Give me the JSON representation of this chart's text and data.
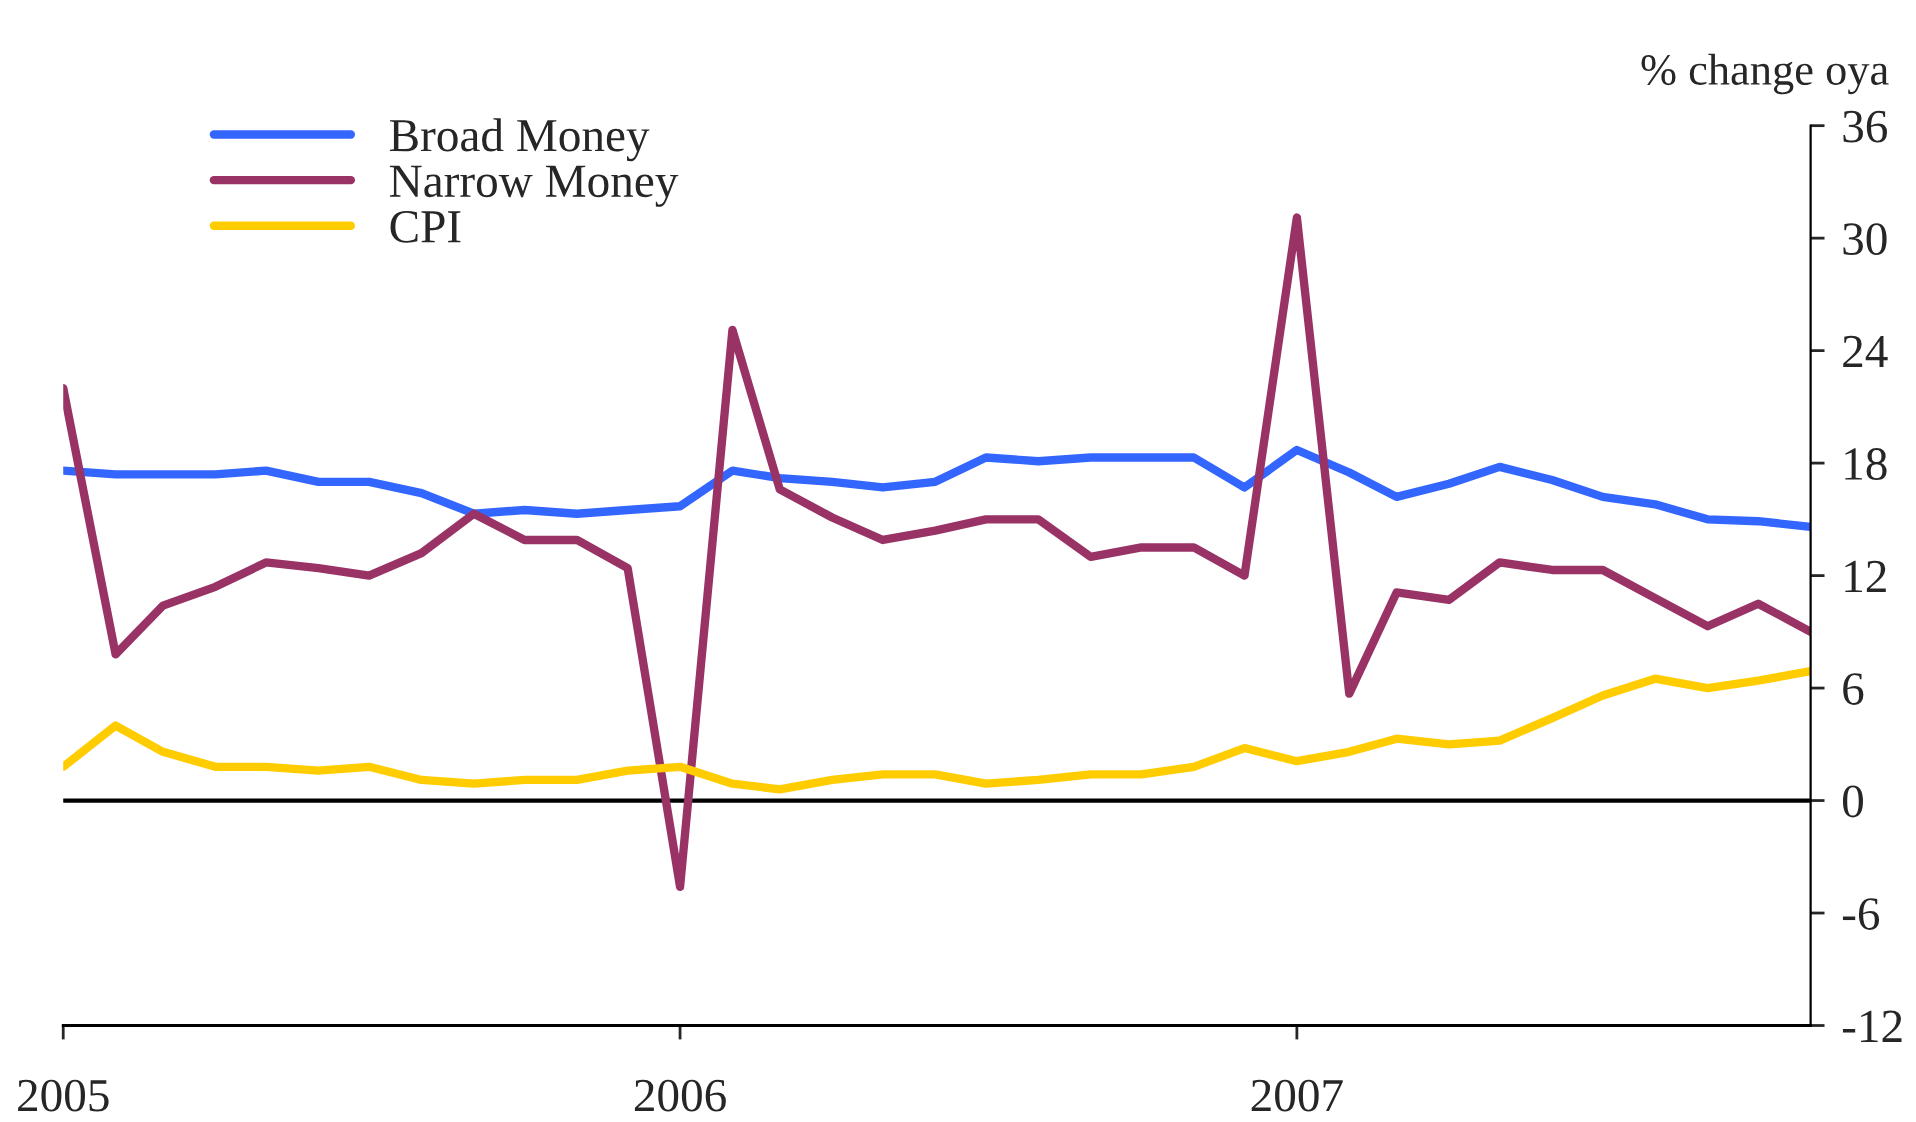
{
  "chart_data": {
    "type": "line",
    "ylabel": "% change oya",
    "x": [
      "2005-01",
      "2005-02",
      "2005-03",
      "2005-04",
      "2005-05",
      "2005-06",
      "2005-07",
      "2005-08",
      "2005-09",
      "2005-10",
      "2005-11",
      "2005-12",
      "2006-01",
      "2006-02",
      "2006-03",
      "2006-04",
      "2006-05",
      "2006-06",
      "2006-07",
      "2006-08",
      "2006-09",
      "2006-10",
      "2006-11",
      "2006-12",
      "2007-01",
      "2007-02",
      "2007-03",
      "2007-04",
      "2007-05",
      "2007-06",
      "2007-07",
      "2007-08",
      "2007-09",
      "2007-10",
      "2007-11"
    ],
    "series": [
      {
        "name": "Broad Money",
        "color": "#3366ff",
        "values": [
          17.6,
          17.4,
          17.4,
          17.4,
          17.6,
          17.0,
          17.0,
          16.4,
          15.3,
          15.5,
          15.3,
          15.5,
          15.7,
          17.6,
          17.2,
          17.0,
          16.7,
          17.0,
          18.3,
          18.1,
          18.3,
          18.3,
          18.3,
          16.7,
          18.7,
          17.5,
          16.2,
          16.9,
          17.8,
          17.1,
          16.2,
          15.8,
          15.0,
          14.9,
          14.6
        ]
      },
      {
        "name": "Narrow Money",
        "color": "#993366",
        "values": [
          22.0,
          7.8,
          10.4,
          11.4,
          12.7,
          12.4,
          12.0,
          13.2,
          15.3,
          13.9,
          13.9,
          12.4,
          -4.6,
          25.1,
          16.6,
          15.1,
          13.9,
          14.4,
          15.0,
          15.0,
          13.0,
          13.5,
          13.5,
          12.0,
          31.1,
          5.7,
          11.1,
          10.7,
          12.7,
          12.3,
          12.3,
          10.8,
          9.3,
          10.5,
          9.0
        ]
      },
      {
        "name": "CPI",
        "color": "#ffcc00",
        "values": [
          1.8,
          4.0,
          2.6,
          1.8,
          1.8,
          1.6,
          1.8,
          1.1,
          0.9,
          1.1,
          1.1,
          1.6,
          1.8,
          0.9,
          0.6,
          1.1,
          1.4,
          1.4,
          0.9,
          1.1,
          1.4,
          1.4,
          1.8,
          2.8,
          2.1,
          2.6,
          3.3,
          3.0,
          3.2,
          4.4,
          5.6,
          6.5,
          6.0,
          6.4,
          6.9
        ]
      }
    ],
    "xlim": [
      "2005-01",
      "2007-11"
    ],
    "xticks": [
      "2005",
      "2006",
      "2007"
    ],
    "ylim": [
      -12,
      36
    ],
    "yticks": [
      -12,
      -6,
      0,
      6,
      12,
      18,
      24,
      30,
      36
    ],
    "ref_lines": [
      {
        "axis": "y",
        "value": 0,
        "color": "#000000"
      }
    ],
    "grid": false,
    "legend": "top left",
    "line_style": "solid",
    "marker": "none"
  }
}
